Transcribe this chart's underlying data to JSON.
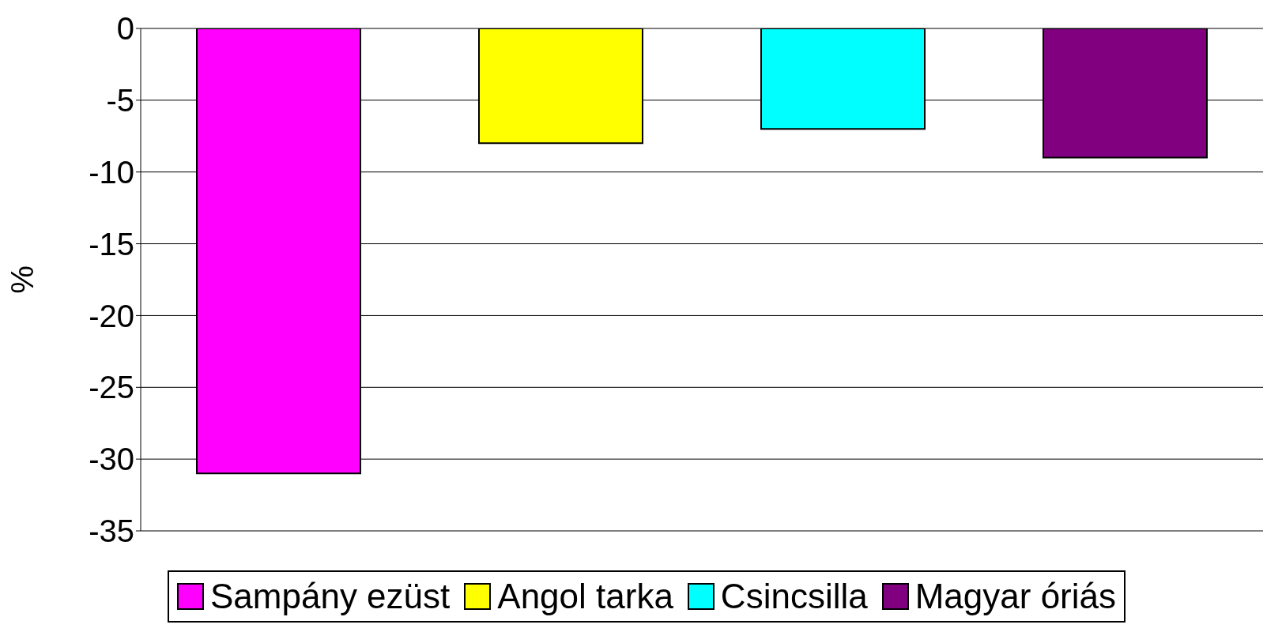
{
  "chart_data": {
    "type": "bar",
    "ylabel": "%",
    "categories": [
      null
    ],
    "series": [
      {
        "name": "Sampány ezüst",
        "color": "#ff00ff",
        "values": [
          -31
        ]
      },
      {
        "name": "Angol tarka",
        "color": "#ffff00",
        "values": [
          -8
        ]
      },
      {
        "name": "Csincsilla",
        "color": "#00ffff",
        "values": [
          -7
        ]
      },
      {
        "name": "Magyar óriás",
        "color": "#800080",
        "values": [
          -9
        ]
      }
    ],
    "ylim": [
      -35,
      0
    ],
    "yticks": [
      -35,
      -30,
      -25,
      -20,
      -15,
      -10,
      -5,
      0
    ],
    "grid": "y",
    "legend": "bottom"
  }
}
